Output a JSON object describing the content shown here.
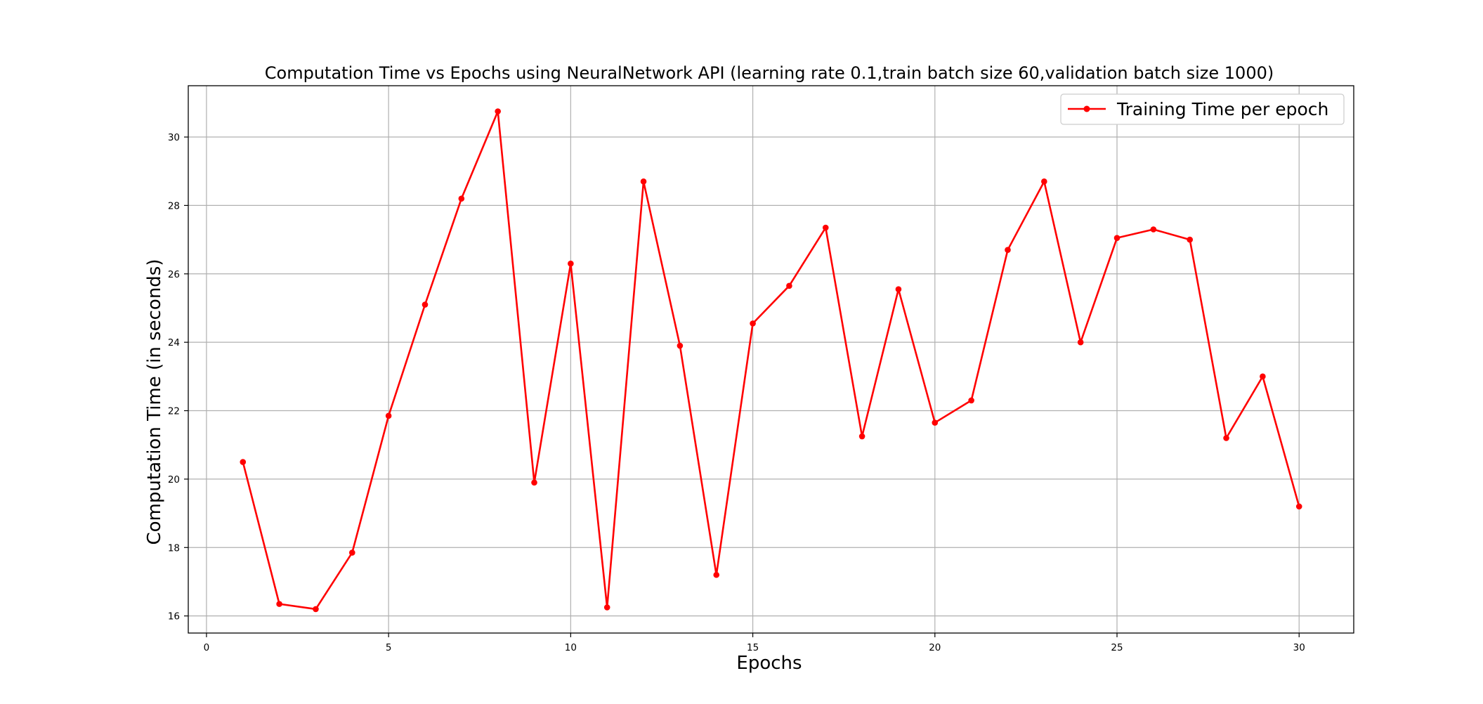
{
  "chart_data": {
    "type": "line",
    "title": "Computation Time vs Epochs using NeuralNetwork API (learning rate 0.1,train batch size 60,validation batch size 1000)",
    "xlabel": "Epochs",
    "ylabel": "Computation Time (in seconds)",
    "xlim": [
      -0.5,
      31.5
    ],
    "ylim": [
      15.5,
      31.5
    ],
    "xticks": [
      0,
      5,
      10,
      15,
      20,
      25,
      30
    ],
    "yticks": [
      16,
      18,
      20,
      22,
      24,
      26,
      28,
      30
    ],
    "grid": true,
    "legend_position": "top-right",
    "series": [
      {
        "name": "Training Time per epoch",
        "color": "#ff0000",
        "marker": "circle",
        "x": [
          1,
          2,
          3,
          4,
          5,
          6,
          7,
          8,
          9,
          10,
          11,
          12,
          13,
          14,
          15,
          16,
          17,
          18,
          19,
          20,
          21,
          22,
          23,
          24,
          25,
          26,
          27,
          28,
          29,
          30
        ],
        "y": [
          20.5,
          16.35,
          16.2,
          17.85,
          21.85,
          25.1,
          28.2,
          30.75,
          19.9,
          26.3,
          16.25,
          28.7,
          23.9,
          17.2,
          24.55,
          25.65,
          27.35,
          21.25,
          25.55,
          21.65,
          22.3,
          26.7,
          28.7,
          24.0,
          27.05,
          27.3,
          27.0,
          21.2,
          23.0,
          19.2
        ]
      }
    ]
  }
}
